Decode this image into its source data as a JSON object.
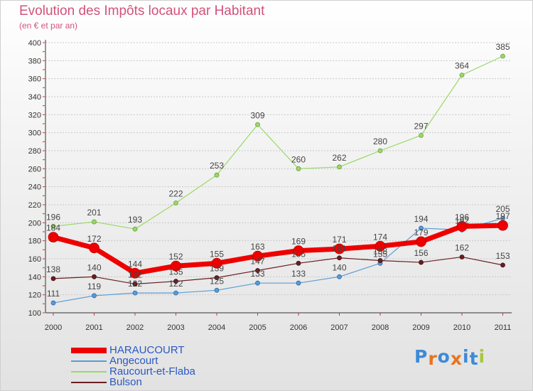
{
  "header": {
    "title": "Evolution des Impôts locaux par Habitant",
    "subtitle": "(en € et par an)"
  },
  "chart_data": {
    "type": "line",
    "title": "Evolution des Impôts locaux par Habitant",
    "subtitle": "(en € et par an)",
    "xlabel": "",
    "ylabel": "",
    "x": [
      "2000",
      "2001",
      "2002",
      "2003",
      "2004",
      "2005",
      "2006",
      "2007",
      "2008",
      "2009",
      "2010",
      "2011"
    ],
    "ylim": [
      100,
      400
    ],
    "yticks": [
      100,
      120,
      140,
      160,
      180,
      200,
      220,
      240,
      260,
      280,
      300,
      320,
      340,
      360,
      380,
      400
    ],
    "grid": "horizontal",
    "legend_position": "bottom-left",
    "series": [
      {
        "name": "Raucourt-et-Flaba",
        "color": "#99d966",
        "values": [
          196,
          201,
          193,
          222,
          253,
          309,
          260,
          262,
          280,
          297,
          364,
          385
        ]
      },
      {
        "name": "Angecourt",
        "color": "#5b9bd5",
        "values": [
          111,
          119,
          122,
          122,
          125,
          133,
          133,
          140,
          155,
          194,
          192,
          205
        ]
      },
      {
        "name": "Bulson",
        "color": "#6b1e22",
        "values": [
          138,
          140,
          132,
          135,
          139,
          147,
          155,
          161,
          158,
          156,
          162,
          153
        ]
      },
      {
        "name": "HARAUCOURT",
        "color": "#ee0000",
        "values": [
          184,
          172,
          144,
          152,
          155,
          163,
          169,
          171,
          174,
          179,
          196,
          197
        ]
      }
    ],
    "legend_order": [
      "HARAUCOURT",
      "Angecourt",
      "Raucourt-et-Flaba",
      "Bulson"
    ]
  },
  "logo": {
    "text": "Proxiti",
    "letters": [
      "P",
      "r",
      "o",
      "x",
      "i",
      "t",
      "i"
    ],
    "colors": [
      "#3d8ad6",
      "#e8741e",
      "#3d8ad6",
      "#e8741e",
      "#3d8ad6",
      "#3d8ad6",
      "#a6c93c"
    ]
  }
}
